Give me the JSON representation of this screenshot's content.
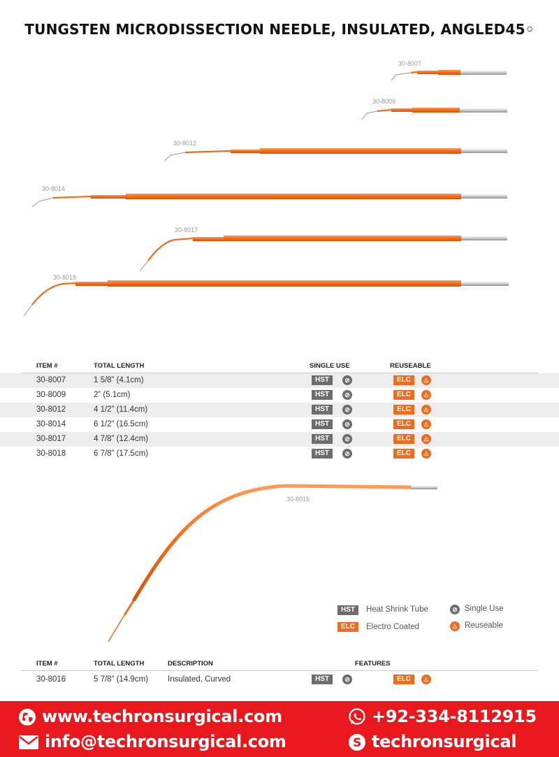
{
  "title": "TUNGSTEN MICRODISSECTION NEEDLE, INSULATED, ANGLED45◦",
  "needles": [
    {
      "label": "30-8007"
    },
    {
      "label": "30-8009"
    },
    {
      "label": "30-8012"
    },
    {
      "label": "30-8014"
    },
    {
      "label": "30-8017"
    },
    {
      "label": "30-8018"
    }
  ],
  "curved_needle": {
    "label": "30-8016"
  },
  "table1": {
    "headers": {
      "item": "ITEM #",
      "length": "TOTAL LENGTH",
      "single": "SINGLE USE",
      "reuse": "REUSEABLE"
    },
    "rows": [
      {
        "item": "30-8007",
        "length": "1 5/8” (4.1cm)",
        "hst": "HST",
        "elc": "ELC"
      },
      {
        "item": "30-8009",
        "length": "2” (5.1cm)",
        "hst": "HST",
        "elc": "ELC"
      },
      {
        "item": "30-8012",
        "length": "4 1/2” (11.4cm)",
        "hst": "HST",
        "elc": "ELC"
      },
      {
        "item": "30-8014",
        "length": "6 1/2” (16.5cm)",
        "hst": "HST",
        "elc": "ELC"
      },
      {
        "item": "30-8017",
        "length": "4 7/8” (12.4cm)",
        "hst": "HST",
        "elc": "ELC"
      },
      {
        "item": "30-8018",
        "length": "6 7/8” (17.5cm)",
        "hst": "HST",
        "elc": "ELC"
      }
    ]
  },
  "legend": {
    "hst_badge": "HST",
    "hst_text": "Heat Shrink Tube",
    "elc_badge": "ELC",
    "elc_text": "Electro Coated",
    "single_text": "Single Use",
    "reuse_text": "Reuseable"
  },
  "table2": {
    "headers": {
      "item": "ITEM #",
      "length": "TOTAL LENGTH",
      "description": "DESCRIPTION",
      "features": "FEATURES"
    },
    "rows": [
      {
        "item": "30-8016",
        "length": "5 7/8” (14.9cm)",
        "description": "Insulated, Curved",
        "hst": "HST",
        "elc": "ELC"
      }
    ]
  },
  "footer": {
    "website": "www.techronsurgical.com",
    "email": "info@techronsurgical.com",
    "phone": "+92-334-8112915",
    "skype": "techronsurgical"
  },
  "colors": {
    "orange": "#f26a1b",
    "gray": "#6d6d6d",
    "footer_red": "#e8181c"
  }
}
